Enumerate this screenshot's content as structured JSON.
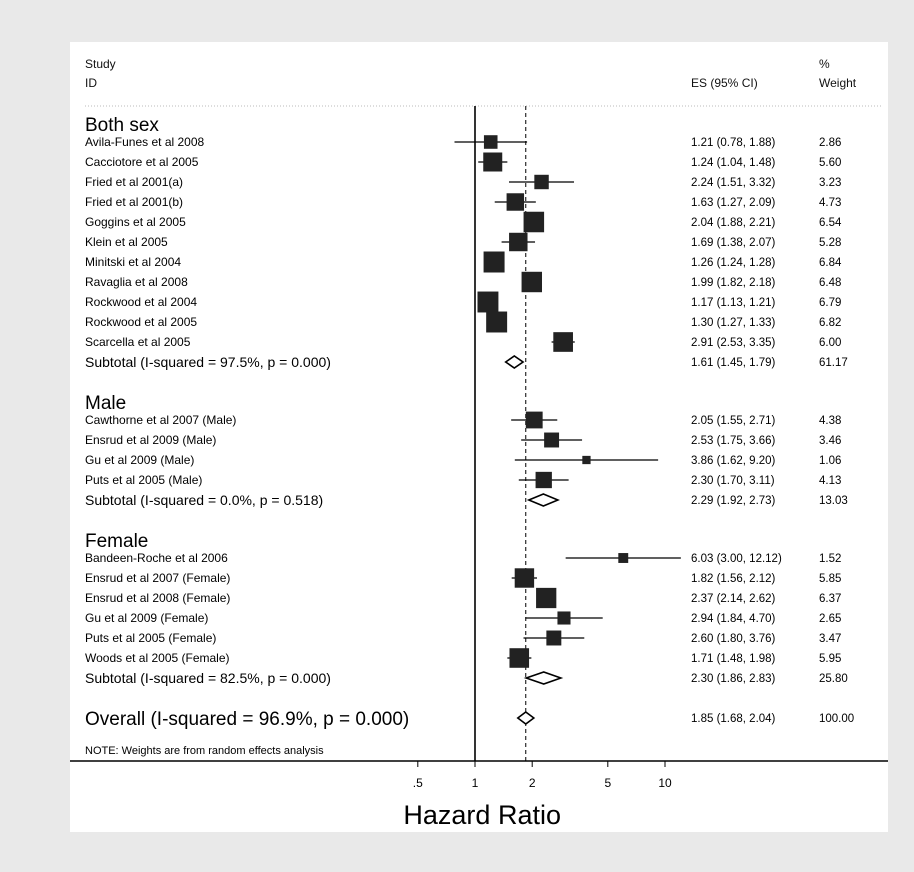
{
  "header": {
    "study_line1": "Study",
    "study_line2": "ID",
    "es_label": "ES (95% CI)",
    "weight_line1": "%",
    "weight_line2": "Weight"
  },
  "chart_data": {
    "type": "forest",
    "scale": "log",
    "xlim": [
      0.4,
      12.12
    ],
    "xticks": [
      {
        "value": 0.5,
        "label": ".5"
      },
      {
        "value": 1,
        "label": "1"
      },
      {
        "value": 2,
        "label": "2"
      },
      {
        "value": 5,
        "label": "5"
      },
      {
        "value": 10,
        "label": "10"
      }
    ],
    "xlabel": "Hazard Ratio",
    "null_line": 1,
    "overall_line": 1.85,
    "groups": [
      {
        "name": "Both sex",
        "studies": [
          {
            "label": "Avila-Funes et al 2008",
            "es": 1.21,
            "lo": 0.78,
            "hi": 1.88,
            "es_text": "1.21 (0.78, 1.88)",
            "weight": 2.86,
            "weight_text": "2.86"
          },
          {
            "label": "Cacciotore et al 2005",
            "es": 1.24,
            "lo": 1.04,
            "hi": 1.48,
            "es_text": "1.24 (1.04, 1.48)",
            "weight": 5.6,
            "weight_text": "5.60"
          },
          {
            "label": "Fried et al 2001(a)",
            "es": 2.24,
            "lo": 1.51,
            "hi": 3.32,
            "es_text": "2.24 (1.51, 3.32)",
            "weight": 3.23,
            "weight_text": "3.23"
          },
          {
            "label": "Fried et al 2001(b)",
            "es": 1.63,
            "lo": 1.27,
            "hi": 2.09,
            "es_text": "1.63 (1.27, 2.09)",
            "weight": 4.73,
            "weight_text": "4.73"
          },
          {
            "label": "Goggins et al 2005",
            "es": 2.04,
            "lo": 1.88,
            "hi": 2.21,
            "es_text": "2.04 (1.88, 2.21)",
            "weight": 6.54,
            "weight_text": "6.54"
          },
          {
            "label": "Klein et al 2005",
            "es": 1.69,
            "lo": 1.38,
            "hi": 2.07,
            "es_text": "1.69 (1.38, 2.07)",
            "weight": 5.28,
            "weight_text": "5.28"
          },
          {
            "label": "Minitski et al 2004",
            "es": 1.26,
            "lo": 1.24,
            "hi": 1.28,
            "es_text": "1.26 (1.24, 1.28)",
            "weight": 6.84,
            "weight_text": "6.84"
          },
          {
            "label": "Ravaglia et al 2008",
            "es": 1.99,
            "lo": 1.82,
            "hi": 2.18,
            "es_text": "1.99 (1.82, 2.18)",
            "weight": 6.48,
            "weight_text": "6.48"
          },
          {
            "label": "Rockwood et al 2004",
            "es": 1.17,
            "lo": 1.13,
            "hi": 1.21,
            "es_text": "1.17 (1.13, 1.21)",
            "weight": 6.79,
            "weight_text": "6.79"
          },
          {
            "label": "Rockwood et al 2005",
            "es": 1.3,
            "lo": 1.27,
            "hi": 1.33,
            "es_text": "1.30 (1.27, 1.33)",
            "weight": 6.82,
            "weight_text": "6.82"
          },
          {
            "label": "Scarcella et al 2005",
            "es": 2.91,
            "lo": 2.53,
            "hi": 3.35,
            "es_text": "2.91 (2.53, 3.35)",
            "weight": 6.0,
            "weight_text": "6.00"
          }
        ],
        "subtotal": {
          "label": "Subtotal  (I-squared = 97.5%, p = 0.000)",
          "es": 1.61,
          "lo": 1.45,
          "hi": 1.79,
          "es_text": "1.61 (1.45, 1.79)",
          "weight_text": "61.17"
        }
      },
      {
        "name": "Male",
        "studies": [
          {
            "label": "Cawthorne et al 2007 (Male)",
            "es": 2.05,
            "lo": 1.55,
            "hi": 2.71,
            "es_text": "2.05 (1.55, 2.71)",
            "weight": 4.38,
            "weight_text": "4.38"
          },
          {
            "label": "Ensrud et al 2009 (Male)",
            "es": 2.53,
            "lo": 1.75,
            "hi": 3.66,
            "es_text": "2.53 (1.75, 3.66)",
            "weight": 3.46,
            "weight_text": "3.46"
          },
          {
            "label": "Gu et al 2009 (Male)",
            "es": 3.86,
            "lo": 1.62,
            "hi": 9.2,
            "es_text": "3.86 (1.62, 9.20)",
            "weight": 1.06,
            "weight_text": "1.06"
          },
          {
            "label": "Puts et al 2005 (Male)",
            "es": 2.3,
            "lo": 1.7,
            "hi": 3.11,
            "es_text": "2.30 (1.70, 3.11)",
            "weight": 4.13,
            "weight_text": "4.13"
          }
        ],
        "subtotal": {
          "label": "Subtotal  (I-squared = 0.0%, p = 0.518)",
          "es": 2.29,
          "lo": 1.92,
          "hi": 2.73,
          "es_text": "2.29 (1.92, 2.73)",
          "weight_text": "13.03"
        }
      },
      {
        "name": "Female",
        "studies": [
          {
            "label": "Bandeen-Roche et al 2006",
            "es": 6.03,
            "lo": 3.0,
            "hi": 12.12,
            "es_text": "6.03 (3.00, 12.12)",
            "weight": 1.52,
            "weight_text": "1.52"
          },
          {
            "label": "Ensrud et al 2007 (Female)",
            "es": 1.82,
            "lo": 1.56,
            "hi": 2.12,
            "es_text": "1.82 (1.56, 2.12)",
            "weight": 5.85,
            "weight_text": "5.85"
          },
          {
            "label": "Ensrud et al 2008 (Female)",
            "es": 2.37,
            "lo": 2.14,
            "hi": 2.62,
            "es_text": "2.37 (2.14, 2.62)",
            "weight": 6.37,
            "weight_text": "6.37"
          },
          {
            "label": "Gu et al 2009 (Female)",
            "es": 2.94,
            "lo": 1.84,
            "hi": 4.7,
            "es_text": "2.94 (1.84, 4.70)",
            "weight": 2.65,
            "weight_text": "2.65"
          },
          {
            "label": "Puts et al 2005 (Female)",
            "es": 2.6,
            "lo": 1.8,
            "hi": 3.76,
            "es_text": "2.60 (1.80, 3.76)",
            "weight": 3.47,
            "weight_text": "3.47"
          },
          {
            "label": "Woods et al 2005 (Female)",
            "es": 1.71,
            "lo": 1.48,
            "hi": 1.98,
            "es_text": "1.71 (1.48, 1.98)",
            "weight": 5.95,
            "weight_text": "5.95"
          }
        ],
        "subtotal": {
          "label": "Subtotal  (I-squared = 82.5%, p = 0.000)",
          "es": 2.3,
          "lo": 1.86,
          "hi": 2.83,
          "es_text": "2.30 (1.86, 2.83)",
          "weight_text": "25.80"
        }
      }
    ],
    "overall": {
      "label": "Overall  (I-squared = 96.9%, p = 0.000)",
      "es": 1.85,
      "lo": 1.68,
      "hi": 2.04,
      "es_text": "1.85 (1.68, 2.04)",
      "weight_text": "100.00"
    },
    "note": "NOTE: Weights are from random effects analysis"
  }
}
